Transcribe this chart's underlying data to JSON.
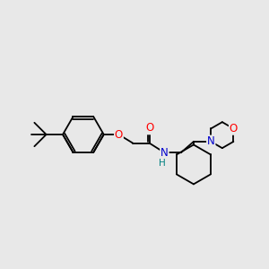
{
  "bg_color": "#e8e8e8",
  "bond_color": "#000000",
  "atom_colors": {
    "O": "#ff0000",
    "N": "#0000cd",
    "H": "#008080",
    "C": "#000000"
  },
  "font_size_atoms": 8.5,
  "font_size_H": 7.5,
  "line_width": 1.3,
  "figsize": [
    3.0,
    3.0
  ],
  "dpi": 100
}
